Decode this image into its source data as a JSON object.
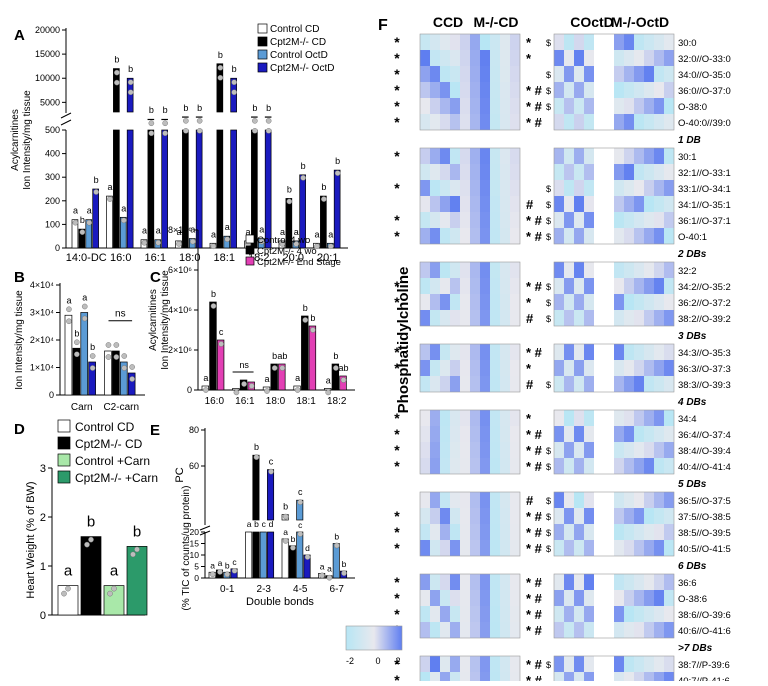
{
  "colors": {
    "ctrl": "#ffffff",
    "ko": "#000000",
    "ctrlOct": "#5b9bd5",
    "koOct": "#1a1abf",
    "ko4wo": "#000000",
    "koEnd": "#e23fb4",
    "ctrlCarn": "#a9e8a9",
    "koCarn": "#2c9a6a",
    "dot": "#bdbdbd",
    "hmLow": "#b7e6f4",
    "hmMid": "#e8e8ee",
    "hmHigh": "#5f7ef0"
  },
  "panels": {
    "A": {
      "letter": "A",
      "ylabel": [
        "Acylcarnitines",
        "Ion Intensity/mg tissue"
      ],
      "legend": [
        {
          "label": "Control CD",
          "color": "#ffffff"
        },
        {
          "label": "Cpt2M-/- CD",
          "color": "#000000"
        },
        {
          "label": "Control OctD",
          "color": "#5b9bd5"
        },
        {
          "label": "Cpt2M-/- OctD",
          "color": "#1a1abf"
        }
      ],
      "upper_ticks": [
        "5000",
        "10000",
        "15000",
        "20000"
      ],
      "lower_ticks": [
        "0",
        "100",
        "200",
        "300",
        "400",
        "500"
      ]
    },
    "B": {
      "letter": "B",
      "ylabel": "Ion Intensity/mg tissue",
      "yticks": [
        "0",
        "1×10⁴",
        "2×10⁴",
        "3×10⁴",
        "4×10⁴"
      ],
      "ns": "ns"
    },
    "C": {
      "letter": "C",
      "ylabel": [
        "Acylcarnitines",
        "Ion Intensity/mg tissue"
      ],
      "yticks": [
        "0",
        "2×10⁶",
        "4×10⁶",
        "6×10⁶",
        "8×10⁶"
      ],
      "ns": "ns",
      "legend": [
        {
          "label": "Control 4 wo",
          "color": "#ffffff"
        },
        {
          "label": "Cpt2M-/- 4 wo",
          "color": "#000000"
        },
        {
          "label": "Cpt2M-/- End Stage",
          "color": "#e23fb4"
        }
      ]
    },
    "D": {
      "letter": "D",
      "ylabel": "Heart Weight (% of BW)",
      "yticks": [
        "0",
        "1",
        "2",
        "3"
      ],
      "legend": [
        {
          "label": "Control CD",
          "color": "#ffffff"
        },
        {
          "label": "Cpt2M-/- CD",
          "color": "#000000"
        },
        {
          "label": "Control +Carn",
          "color": "#a9e8a9"
        },
        {
          "label": "Cpt2M-/- +Carn",
          "color": "#2c9a6a"
        }
      ]
    },
    "E": {
      "letter": "E",
      "ylabel_upper": "PC",
      "ylabel_lower": "(% TIC of counts/ug protein)",
      "xlabel": "Double bonds",
      "upper_ticks": [
        "60",
        "80"
      ],
      "lower_ticks": [
        "0",
        "5",
        "10",
        "15",
        "20"
      ]
    },
    "F": {
      "letter": "F",
      "side_label": "Phosphatidylcholine",
      "col_headers": [
        "CCD",
        "M-/-CD",
        "COctD",
        "M-/-OctD"
      ],
      "colorbar_ticks": [
        "-2",
        "0",
        "2"
      ]
    }
  },
  "chart_data": [
    {
      "type": "bar",
      "panel": "A",
      "categories": [
        "14:0-DC",
        "16:0",
        "16:1",
        "18:0",
        "18:1",
        "18:2",
        "20:0",
        "20:1"
      ],
      "series": [
        {
          "name": "Control CD",
          "values": [
            120,
            220,
            35,
            30,
            20,
            30,
            30,
            20
          ]
        },
        {
          "name": "Cpt2M-/- CD",
          "values": [
            80,
            12000,
            1500,
            2000,
            13000,
            2000,
            210,
            220
          ]
        },
        {
          "name": "Control OctD",
          "values": [
            120,
            130,
            35,
            40,
            50,
            40,
            30,
            20
          ]
        },
        {
          "name": "Cpt2M-/- OctD",
          "values": [
            250,
            10000,
            1500,
            2000,
            10000,
            2000,
            310,
            330
          ]
        }
      ],
      "letters": [
        [
          "a",
          "b",
          "a",
          "b"
        ],
        [
          "a",
          "b",
          "a",
          "b"
        ],
        [
          "a",
          "b",
          "a",
          "b"
        ],
        [
          "a",
          "b",
          "a",
          "b"
        ],
        [
          "a",
          "b",
          "a",
          "b"
        ],
        [
          "a",
          "b",
          "a",
          "b"
        ],
        [
          "a",
          "b",
          "a",
          "b"
        ],
        [
          "a",
          "b",
          "a",
          "b"
        ]
      ],
      "axis_break": true
    },
    {
      "type": "bar",
      "panel": "B",
      "categories": [
        "Carn",
        "C2-carn"
      ],
      "series": [
        {
          "name": "Control CD",
          "values": [
            29000,
            16000
          ]
        },
        {
          "name": "Cpt2M-/- CD",
          "values": [
            17000,
            16000
          ]
        },
        {
          "name": "Control OctD",
          "values": [
            30000,
            12000
          ]
        },
        {
          "name": "Cpt2M-/- OctD",
          "values": [
            12000,
            8000
          ]
        }
      ],
      "letters": [
        [
          "a",
          "b",
          "a",
          "b"
        ],
        [
          "",
          "",
          "",
          ""
        ]
      ],
      "ylim": [
        0,
        40000
      ]
    },
    {
      "type": "bar",
      "panel": "C",
      "categories": [
        "16:0",
        "16:1",
        "18:0",
        "18:1",
        "18:2"
      ],
      "series": [
        {
          "name": "Control 4 wo",
          "values": [
            200000,
            80000,
            150000,
            200000,
            80000
          ]
        },
        {
          "name": "Cpt2M-/- 4 wo",
          "values": [
            4400000,
            500000,
            1300000,
            3700000,
            1300000
          ]
        },
        {
          "name": "Cpt2M-/- End Stage",
          "values": [
            2500000,
            400000,
            1300000,
            3200000,
            700000
          ]
        }
      ],
      "letters": [
        [
          "a",
          "b",
          "c"
        ],
        [
          "",
          "",
          ""
        ],
        [
          "a",
          "b",
          "ab"
        ],
        [
          "a",
          "b",
          "b"
        ],
        [
          "a",
          "b",
          "ab"
        ]
      ],
      "ylim": [
        0,
        8000000
      ]
    },
    {
      "type": "bar",
      "panel": "D",
      "categories": [
        "Control CD",
        "Cpt2M-/- CD",
        "Control +Carn",
        "Cpt2M-/- +Carn"
      ],
      "values": [
        0.6,
        1.6,
        0.6,
        1.4
      ],
      "letters": [
        "a",
        "b",
        "a",
        "b"
      ],
      "ylim": [
        0,
        3
      ]
    },
    {
      "type": "bar",
      "panel": "E",
      "categories": [
        "0-1",
        "2-3",
        "4-5",
        "6-7"
      ],
      "series": [
        {
          "name": "Control CD",
          "values": [
            2.5,
            35,
            17,
            2
          ]
        },
        {
          "name": "Cpt2M-/- CD",
          "values": [
            3.5,
            66,
            14,
            1
          ]
        },
        {
          "name": "Control OctD",
          "values": [
            2.5,
            30,
            20,
            15
          ]
        },
        {
          "name": "Cpt2M-/- OctD",
          "values": [
            4,
            58,
            10,
            3
          ]
        }
      ],
      "upper_values": [
        null,
        [
          66,
          58
        ],
        [
          33,
          41
        ],
        null
      ],
      "upper_letters": [
        "b",
        "c",
        "b",
        "c"
      ],
      "letters": [
        [
          "a",
          "a",
          "b",
          "c"
        ],
        [
          "a",
          "b",
          "c",
          "d"
        ],
        [
          "a",
          "b",
          "c",
          "d"
        ],
        [
          "a",
          "a",
          "b",
          "b"
        ]
      ],
      "axis_break": true
    },
    {
      "type": "heatmap",
      "panel": "F",
      "columns": [
        "CCD",
        "M-/-CD",
        "COctD",
        "M-/-OctD"
      ],
      "groups": [
        {
          "header": "",
          "rows": [
            [
              "30:0",
              "",
              ""
            ],
            [
              "32:0//O-33:0",
              "",
              ""
            ],
            [
              "34:0//O-35:0",
              "",
              ""
            ],
            [
              "36:0//O-37:0",
              "",
              ""
            ],
            [
              "O-38:0",
              "",
              ""
            ],
            [
              "O-40:0//39:0",
              "",
              ""
            ]
          ]
        },
        {
          "header": "1 DB",
          "rows": [
            [
              "30:1",
              "",
              ""
            ],
            [
              "32:1//O-33:1",
              "",
              ""
            ],
            [
              "33:1//O-34:1",
              "",
              ""
            ],
            [
              "34:1//O-35:1",
              "",
              ""
            ],
            [
              "36:1//O-37:1",
              "",
              ""
            ],
            [
              "O-40:1",
              "",
              ""
            ]
          ]
        },
        {
          "header": "2 DBs",
          "rows": [
            [
              "32:2",
              "",
              ""
            ],
            [
              "34:2//O-35:2",
              "",
              ""
            ],
            [
              "36:2//O-37:2",
              "",
              ""
            ],
            [
              "38:2//O-39:2",
              "",
              ""
            ]
          ]
        },
        {
          "header": "3 DBs",
          "rows": [
            [
              "34:3//O-35:3",
              "",
              ""
            ],
            [
              "36:3//O-37:3",
              "",
              ""
            ],
            [
              "38:3//O-39:3",
              "",
              ""
            ]
          ]
        },
        {
          "header": "4 DBs",
          "rows": [
            [
              "34:4",
              "",
              ""
            ],
            [
              "36:4//O-37:4",
              "",
              ""
            ],
            [
              "38:4//O-39:4",
              "",
              ""
            ],
            [
              "40:4//O-41:4",
              "",
              ""
            ]
          ]
        },
        {
          "header": "5 DBs",
          "rows": [
            [
              "36:5//O-37:5",
              "",
              ""
            ],
            [
              "37:5//O-38:5",
              "",
              ""
            ],
            [
              "38:5//O-39:5",
              "",
              ""
            ],
            [
              "40:5//O-41:5",
              "",
              ""
            ]
          ]
        },
        {
          "header": "6 DBs",
          "rows": [
            [
              "36:6",
              "",
              ""
            ],
            [
              "O-38:6",
              "",
              ""
            ],
            [
              "38:6//O-39:6",
              "",
              ""
            ],
            [
              "40:6//O-41:6",
              "",
              ""
            ]
          ]
        },
        {
          "header": ">7 DBs",
          "rows": [
            [
              "38:7//P-39:6",
              "",
              ""
            ],
            [
              "40:7//P-41:6",
              "",
              ""
            ],
            [
              "40:8//39:1",
              "",
              ""
            ]
          ]
        }
      ],
      "colorbar": {
        "min": -2,
        "max": 2,
        "ticks": [
          -2,
          0,
          2
        ]
      }
    }
  ],
  "heatmap_marks": [
    [
      "*",
      "*",
      "$"
    ],
    [
      "*",
      "*",
      ""
    ],
    [
      "*",
      "",
      "$"
    ],
    [
      "*",
      "* #",
      "$"
    ],
    [
      "*",
      "* #",
      "$"
    ],
    [
      "*",
      "* #",
      ""
    ],
    [
      "*",
      "",
      ""
    ],
    [
      "",
      "",
      ""
    ],
    [
      "*",
      "",
      "$"
    ],
    [
      "",
      "#",
      "$"
    ],
    [
      "*",
      "* #",
      "$"
    ],
    [
      "*",
      "* #",
      "$"
    ],
    [
      "",
      "",
      ""
    ],
    [
      "*",
      "* #",
      "$"
    ],
    [
      "*",
      "*",
      "$"
    ],
    [
      "",
      "#",
      "$"
    ],
    [
      "*",
      "* #",
      ""
    ],
    [
      "*",
      "*",
      ""
    ],
    [
      "",
      "#",
      "$"
    ],
    [
      "*",
      "*",
      ""
    ],
    [
      "*",
      "* #",
      ""
    ],
    [
      "*",
      "* #",
      "$"
    ],
    [
      "*",
      "* #",
      "$"
    ],
    [
      "",
      "#",
      "$"
    ],
    [
      "*",
      "* #",
      "$"
    ],
    [
      "*",
      "* #",
      "$"
    ],
    [
      "*",
      "* #",
      "$"
    ],
    [
      "*",
      "* #",
      ""
    ],
    [
      "*",
      "* #",
      ""
    ],
    [
      "*",
      "* #",
      ""
    ],
    [
      "*",
      "* #",
      ""
    ],
    [
      "*",
      "* #",
      "$"
    ],
    [
      "*",
      "* #",
      ""
    ],
    [
      "*",
      "* #",
      ""
    ]
  ]
}
